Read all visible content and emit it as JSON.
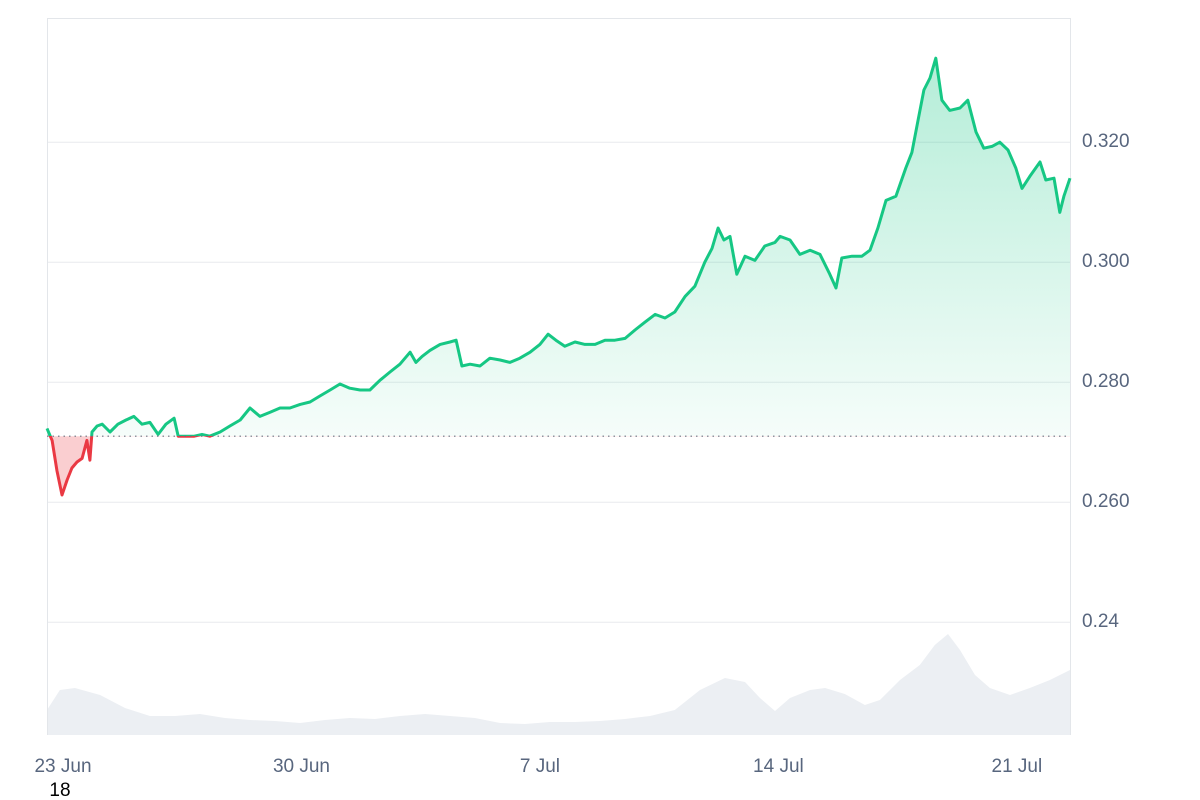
{
  "chart_data": [
    {
      "type": "line",
      "x": [
        -0.47,
        -0.32,
        -0.18,
        -0.03,
        0.12,
        0.26,
        0.41,
        0.56,
        0.7,
        0.79,
        0.85,
        1.0,
        1.15,
        1.38,
        1.61,
        1.85,
        2.08,
        2.32,
        2.55,
        2.79,
        3.02,
        3.26,
        3.38,
        3.61,
        3.85,
        4.08,
        4.31,
        4.61,
        4.9,
        5.2,
        5.49,
        5.78,
        6.08,
        6.37,
        6.66,
        6.96,
        7.25,
        7.54,
        7.84,
        8.13,
        8.42,
        8.72,
        9.01,
        9.3,
        9.6,
        9.89,
        10.19,
        10.36,
        10.54,
        10.77,
        11.07,
        11.36,
        11.54,
        11.71,
        11.95,
        12.24,
        12.53,
        12.83,
        13.12,
        13.41,
        13.71,
        14.0,
        14.24,
        14.47,
        14.73,
        15.03,
        15.32,
        15.62,
        15.91,
        16.2,
        16.5,
        16.79,
        17.08,
        17.38,
        17.67,
        17.96,
        18.26,
        18.55,
        18.84,
        19.05,
        19.23,
        19.4,
        19.58,
        19.78,
        20.02,
        20.31,
        20.6,
        20.9,
        21.05,
        21.34,
        21.63,
        21.93,
        22.22,
        22.51,
        22.69,
        22.86,
        23.16,
        23.45,
        23.69,
        23.92,
        24.16,
        24.45,
        24.74,
        24.92,
        25.1,
        25.27,
        25.45,
        25.62,
        25.8,
        26.03,
        26.33,
        26.56,
        26.8,
        27.03,
        27.27,
        27.5,
        27.74,
        27.97,
        28.15,
        28.38,
        28.68,
        28.85,
        29.09,
        29.26,
        29.38,
        29.56
      ],
      "series": [
        {
          "color": "#16c784",
          "negative_color": "#ea3943",
          "values": [
            0.2723,
            0.2703,
            0.2653,
            0.2612,
            0.2637,
            0.2657,
            0.2667,
            0.2673,
            0.2703,
            0.267,
            0.2717,
            0.2727,
            0.273,
            0.2717,
            0.273,
            0.2737,
            0.2743,
            0.273,
            0.2733,
            0.2713,
            0.273,
            0.274,
            0.271,
            0.271,
            0.271,
            0.2713,
            0.271,
            0.2717,
            0.2727,
            0.2737,
            0.2757,
            0.2743,
            0.275,
            0.2757,
            0.2757,
            0.2763,
            0.2767,
            0.2777,
            0.2787,
            0.2797,
            0.279,
            0.2787,
            0.2787,
            0.2803,
            0.2817,
            0.283,
            0.285,
            0.2833,
            0.2843,
            0.2853,
            0.2863,
            0.2867,
            0.287,
            0.2827,
            0.283,
            0.2827,
            0.284,
            0.2837,
            0.2833,
            0.284,
            0.285,
            0.2863,
            0.288,
            0.287,
            0.286,
            0.2867,
            0.2863,
            0.2863,
            0.287,
            0.287,
            0.2873,
            0.2887,
            0.29,
            0.2913,
            0.2907,
            0.2917,
            0.2943,
            0.296,
            0.3,
            0.3023,
            0.3057,
            0.3037,
            0.3043,
            0.298,
            0.301,
            0.3003,
            0.3027,
            0.3033,
            0.3043,
            0.3037,
            0.3013,
            0.302,
            0.3013,
            0.298,
            0.2957,
            0.3007,
            0.301,
            0.301,
            0.302,
            0.3057,
            0.3103,
            0.311,
            0.3157,
            0.3183,
            0.3237,
            0.3287,
            0.3307,
            0.334,
            0.327,
            0.3253,
            0.3257,
            0.327,
            0.3217,
            0.319,
            0.3193,
            0.32,
            0.3187,
            0.3157,
            0.3123,
            0.3143,
            0.3167,
            0.3137,
            0.314,
            0.3083,
            0.311,
            0.314
          ]
        }
      ],
      "baseline": 0.271,
      "xlim": [
        -0.47,
        29.56
      ],
      "xticks": [
        {
          "value": 0,
          "label": "23 Jun"
        },
        {
          "value": 7,
          "label": "30 Jun"
        },
        {
          "value": 14,
          "label": "7 Jul"
        },
        {
          "value": 21,
          "label": "14 Jul"
        },
        {
          "value": 28,
          "label": "21 Jul"
        }
      ],
      "ylim": [
        0.2212,
        0.3407
      ],
      "yticks": [
        0.24,
        {
          "value": 0.26,
          "label": "0.260"
        },
        {
          "value": 0.28,
          "label": "0.280"
        },
        {
          "value": 0.3,
          "label": "0.300"
        },
        {
          "value": 0.32,
          "label": "0.320"
        }
      ],
      "grid": true,
      "annotation": "18"
    },
    {
      "type": "area",
      "x": [
        -0.47,
        -0.09,
        0.35,
        1.09,
        1.82,
        2.55,
        3.29,
        4.02,
        4.75,
        5.49,
        6.22,
        6.96,
        7.69,
        8.42,
        9.16,
        9.89,
        10.63,
        11.36,
        12.09,
        12.83,
        13.56,
        14.29,
        15.03,
        15.76,
        16.5,
        17.23,
        17.96,
        18.7,
        19.43,
        20.02,
        20.46,
        20.9,
        21.34,
        21.93,
        22.37,
        22.95,
        23.54,
        23.98,
        24.57,
        25.15,
        25.59,
        25.98,
        26.33,
        26.77,
        27.21,
        27.8,
        28.38,
        28.97,
        29.56
      ],
      "values": [
        25,
        45,
        47,
        40,
        27,
        19,
        19,
        21,
        17,
        15,
        14,
        12,
        15,
        17,
        16,
        19,
        21,
        19,
        17,
        12,
        11,
        13,
        13,
        14,
        16,
        19,
        25,
        45,
        57,
        53,
        37,
        24,
        37,
        45,
        47,
        41,
        30,
        35,
        55,
        70,
        90,
        101,
        85,
        60,
        47,
        40,
        47,
        55,
        65
      ],
      "color": "#eceff3",
      "xlim": [
        -0.47,
        29.56
      ],
      "ylim": [
        0,
        120
      ]
    }
  ]
}
